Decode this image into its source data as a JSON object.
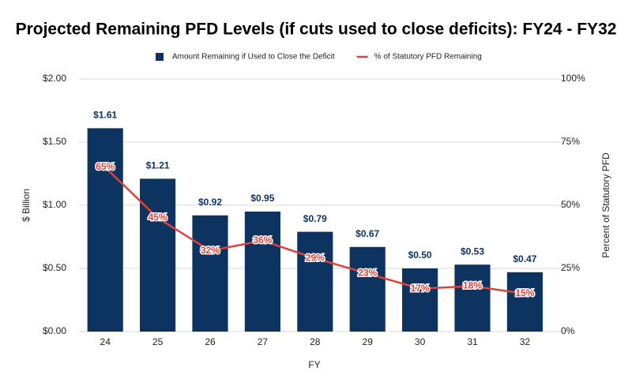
{
  "chart_data": {
    "type": "bar",
    "title": "Projected Remaining PFD Levels (if cuts used to close deficits): FY24 - FY32",
    "x_label": "FY",
    "y_label": "$ Billion",
    "y2_label": "Percent of Statutory PFD",
    "categories": [
      "24",
      "25",
      "26",
      "27",
      "28",
      "29",
      "30",
      "31",
      "32"
    ],
    "series": [
      {
        "name": "Amount Remaining if Used to Close the Deficit",
        "type": "bar",
        "color": "#0d3461",
        "values": [
          1.61,
          1.21,
          0.92,
          0.95,
          0.79,
          0.67,
          0.5,
          0.53,
          0.47
        ],
        "value_labels": [
          "$1.61",
          "$1.21",
          "$0.92",
          "$0.95",
          "$0.79",
          "$0.67",
          "$0.50",
          "$0.53",
          "$0.47"
        ]
      },
      {
        "name": "% of Statutory PFD Remaining",
        "type": "line",
        "axis": "y2",
        "color": "#e0413a",
        "values": [
          65,
          45,
          32,
          36,
          29,
          23,
          17,
          18,
          15
        ],
        "value_labels": [
          "65%",
          "45%",
          "32%",
          "36%",
          "29%",
          "23%",
          "17%",
          "18%",
          "15%"
        ]
      }
    ],
    "ylim": [
      0,
      2
    ],
    "yticks": [
      {
        "value": 0,
        "label": "$0.00"
      },
      {
        "value": 0.5,
        "label": "$0.50"
      },
      {
        "value": 1,
        "label": "$1.00"
      },
      {
        "value": 1.5,
        "label": "$1.50"
      },
      {
        "value": 2,
        "label": "$2.00"
      }
    ],
    "y2lim": [
      0,
      100
    ],
    "y2ticks": [
      {
        "value": 0,
        "label": "0%"
      },
      {
        "value": 25,
        "label": "25%"
      },
      {
        "value": 50,
        "label": "50%"
      },
      {
        "value": 75,
        "label": "75%"
      },
      {
        "value": 100,
        "label": "100%"
      }
    ],
    "grid": true,
    "legend": "top"
  }
}
